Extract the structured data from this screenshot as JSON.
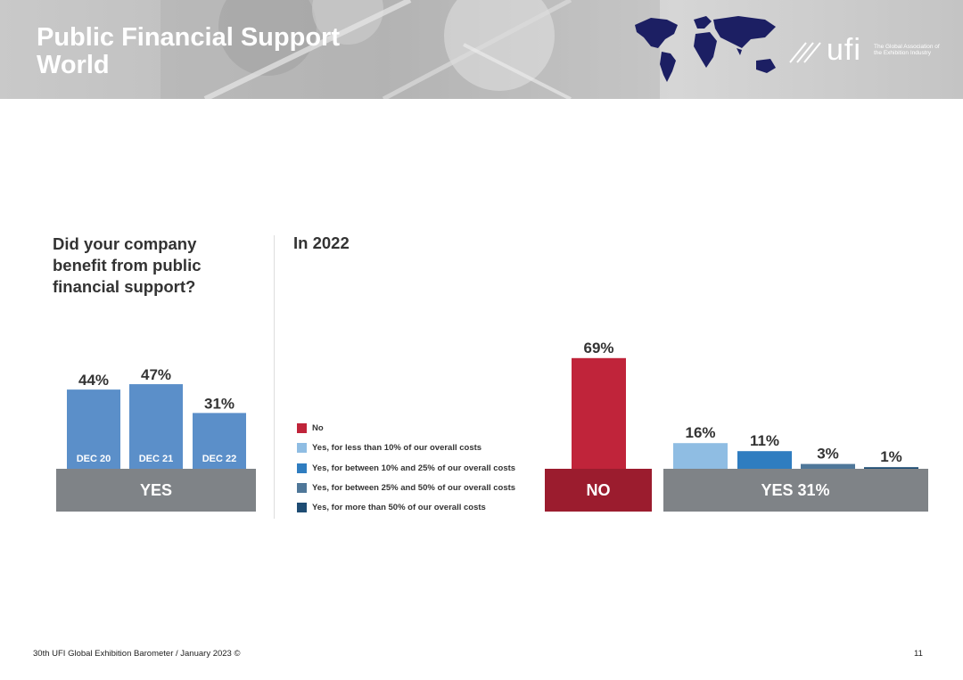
{
  "header": {
    "title": "Public Financial Support\nWorld",
    "logo_word": "ufi",
    "logo_tagline": "The Global Association of the Exhibition Industry"
  },
  "question": "Did your company benefit from public financial support?",
  "section_2022": "In 2022",
  "footer": {
    "source": "30th UFI Global Exhibition Barometer / January 2023 ©",
    "page": "11"
  },
  "legend": [
    {
      "label": "No",
      "color": "#c0243a"
    },
    {
      "label": "Yes, for less than 10% of our overall costs",
      "color": "#8fbde3"
    },
    {
      "label": "Yes, for between 10% and 25% of our overall costs",
      "color": "#2f7dc0"
    },
    {
      "label": "Yes, for between 25% and 50% of our overall costs",
      "color": "#4f7799"
    },
    {
      "label": "Yes, for more than 50% of our overall costs",
      "color": "#1e4c73"
    }
  ],
  "chart_data": [
    {
      "type": "bar",
      "title": "Did your company benefit from public financial support?",
      "categories": [
        "DEC 20",
        "DEC 21",
        "DEC 22"
      ],
      "values": [
        44,
        47,
        31
      ],
      "value_labels": [
        "44%",
        "47%",
        "31%"
      ],
      "group_label": "YES",
      "bar_color": "#5b8fc9",
      "base_color": "#7f8387",
      "ylim": [
        0,
        100
      ]
    },
    {
      "type": "bar",
      "title": "In 2022",
      "categories": [
        "No",
        "Yes, for less than 10% of our overall costs",
        "Yes, for between 10% and 25% of our overall costs",
        "Yes, for between 25% and 50% of our overall costs",
        "Yes, for more than 50% of our overall costs"
      ],
      "values": [
        69,
        16,
        11,
        3,
        1
      ],
      "value_labels": [
        "69%",
        "16%",
        "11%",
        "3%",
        "1%"
      ],
      "colors": [
        "#c0243a",
        "#8fbde3",
        "#2f7dc0",
        "#4f7799",
        "#1e4c73"
      ],
      "groups": [
        {
          "label": "NO",
          "color": "#9b1c2e",
          "members": [
            0
          ]
        },
        {
          "label": "YES 31%",
          "color": "#7f8387",
          "members": [
            1,
            2,
            3,
            4
          ]
        }
      ],
      "ylim": [
        0,
        100
      ]
    }
  ]
}
